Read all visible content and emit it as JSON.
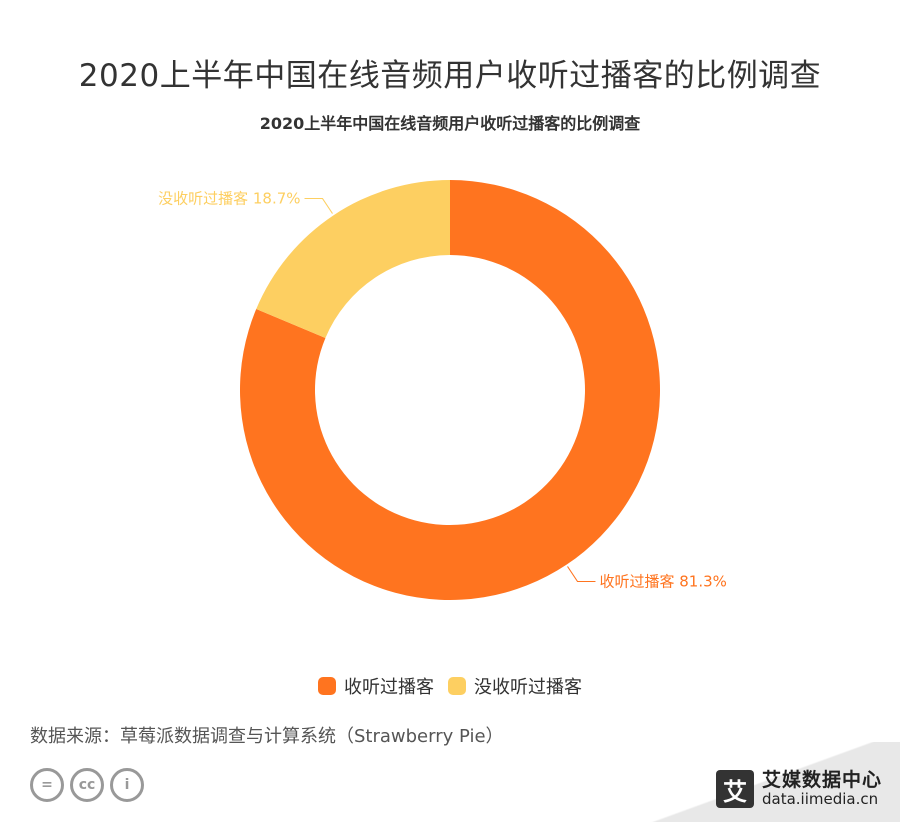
{
  "page_title": "2020上半年中国在线音频用户收听过播客的比例调查",
  "chart_data": {
    "type": "pie",
    "title": "2020上半年中国在线音频用户收听过播客的比例调查",
    "categories": [
      "收听过播客",
      "没收听过播客"
    ],
    "values": [
      81.3,
      18.7
    ],
    "data_labels": [
      "收听过播客 81.3%",
      "没收听过播客 18.7%"
    ],
    "colors": [
      "#FF741F",
      "#FDCF61"
    ],
    "hole": "donut",
    "legend_position": "bottom-center"
  },
  "source_text": "数据来源：草莓派数据调查与计算系统（Strawberry Pie）",
  "license_icons": [
    {
      "name": "equal-icon",
      "glyph": "="
    },
    {
      "name": "cc-icon",
      "glyph": "cc"
    },
    {
      "name": "person-icon",
      "glyph": "i"
    }
  ],
  "brand": {
    "logo_glyph": "艾",
    "name": "艾媒数据中心",
    "url": "data.iimedia.cn"
  }
}
